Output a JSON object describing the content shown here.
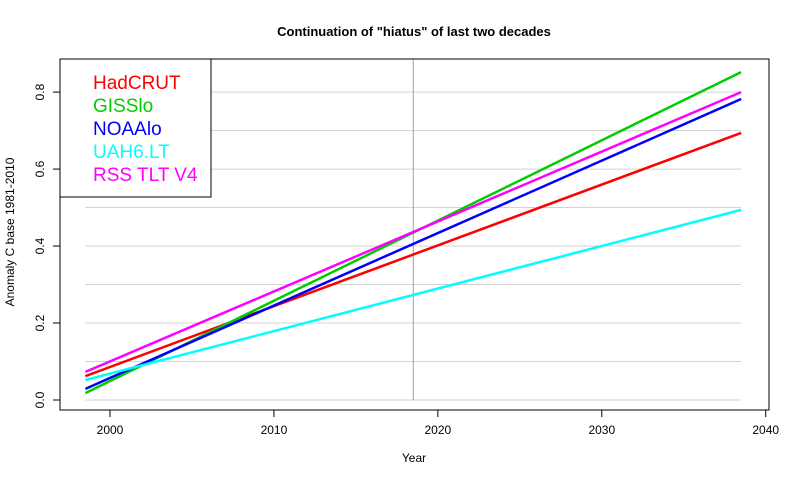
{
  "chart_data": {
    "type": "line",
    "title": "Continuation of \"hiatus\" of last two decades",
    "xlabel": "Year",
    "ylabel": "Anomaly C base 1981-2010",
    "xlim": [
      1996.95,
      2040.2
    ],
    "ylim": [
      -0.026,
      0.886
    ],
    "xticks": [
      2000,
      2010,
      2020,
      2030,
      2040
    ],
    "yticks": [
      0.0,
      0.2,
      0.4,
      0.6,
      0.8
    ],
    "ytick_labels": [
      "0.0",
      "0.2",
      "0.4",
      "0.6",
      "0.8"
    ],
    "grid": {
      "horizontal_step": 0.1,
      "range": [
        0.0,
        0.8
      ],
      "color": "#d3d3d3"
    },
    "vline": {
      "x": 2018.5,
      "color": "#a0a0a0"
    },
    "legend_position": "top-left",
    "series": [
      {
        "name": "HadCRUT",
        "color": "#ff0000",
        "x": [
          1998.5,
          2038.5
        ],
        "y": [
          0.062,
          0.694
        ]
      },
      {
        "name": "GISSlo",
        "color": "#00cd00",
        "x": [
          1998.5,
          2038.5
        ],
        "y": [
          0.018,
          0.852
        ]
      },
      {
        "name": "NOAAlo",
        "color": "#0000ff",
        "x": [
          1998.5,
          2038.5
        ],
        "y": [
          0.029,
          0.782
        ]
      },
      {
        "name": "UAH6.LT",
        "color": "#00ffff",
        "x": [
          1998.5,
          2038.5
        ],
        "y": [
          0.052,
          0.494
        ]
      },
      {
        "name": "RSS TLT V4",
        "color": "#ff00ff",
        "x": [
          1998.5,
          2038.5
        ],
        "y": [
          0.073,
          0.8
        ]
      }
    ]
  }
}
